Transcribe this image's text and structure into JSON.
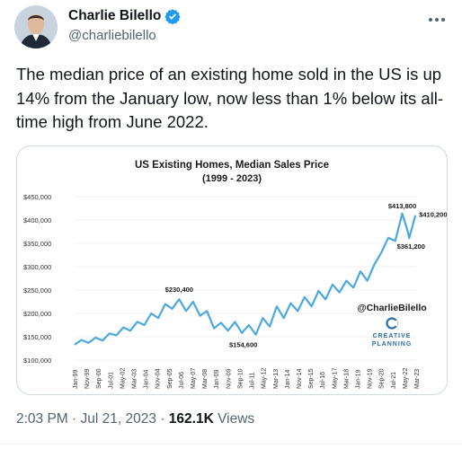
{
  "author": {
    "display_name": "Charlie Bilello",
    "handle": "@charliebilello",
    "verified": true
  },
  "menu_icon": "more-horizontal-icon",
  "tweet": {
    "text": "The median price of an existing home sold in the US is up 14% from the January low, now less than 1% below its all-time high from June 2022."
  },
  "meta": {
    "time": "2:03 PM",
    "separator": "·",
    "date": "Jul 21, 2023",
    "views_count": "162.1K",
    "views_label": "Views"
  },
  "chart_data": {
    "type": "line",
    "title": "US Existing Homes, Median Sales Price",
    "subtitle": "(1999 - 2023)",
    "y_ticks": [
      "$100,000",
      "$150,000",
      "$200,000",
      "$250,000",
      "$300,000",
      "$350,000",
      "$400,000",
      "$450,000"
    ],
    "ylim": [
      100000,
      450000
    ],
    "x_ticks": [
      "Jan-99",
      "Nov-99",
      "Sep-00",
      "Jul-01",
      "May-02",
      "Mar-03",
      "Jan-04",
      "Nov-04",
      "Sep-05",
      "Jul-06",
      "May-07",
      "Mar-08",
      "Jan-09",
      "Nov-09",
      "Sep-10",
      "Jul-11",
      "May-12",
      "Mar-13",
      "Jan-14",
      "Nov-14",
      "Sep-15",
      "Jul-16",
      "May-17",
      "Mar-18",
      "Jan-19",
      "Nov-19",
      "Sep-20",
      "Jul-21",
      "May-22",
      "Mar-23"
    ],
    "annotations": [
      {
        "label": "$230,400",
        "x": 2006.5,
        "y": 230400
      },
      {
        "label": "$154,600",
        "x": 2011.1,
        "y": 154600
      },
      {
        "label": "$413,800",
        "x": 2022.5,
        "y": 413800
      },
      {
        "label": "$361,200",
        "x": 2023.0,
        "y": 361200
      },
      {
        "label": "$410,200",
        "x": 2023.45,
        "y": 410200
      }
    ],
    "series": [
      {
        "x": [
          1999.0,
          1999.5,
          2000.0,
          2000.5,
          2001.0,
          2001.5,
          2002.0,
          2002.5,
          2003.0,
          2003.5,
          2004.0,
          2004.5,
          2005.0,
          2005.5,
          2006.0,
          2006.5,
          2007.0,
          2007.5,
          2008.0,
          2008.5,
          2009.0,
          2009.5,
          2010.0,
          2010.5,
          2011.0,
          2011.5,
          2012.0,
          2012.5,
          2013.0,
          2013.5,
          2014.0,
          2014.5,
          2015.0,
          2015.5,
          2016.0,
          2016.5,
          2017.0,
          2017.5,
          2018.0,
          2018.5,
          2019.0,
          2019.5,
          2020.0,
          2020.5,
          2021.0,
          2021.5,
          2022.0,
          2022.5,
          2022.9,
          2023.0,
          2023.45
        ],
        "y": [
          133000,
          143000,
          137000,
          148000,
          142000,
          157000,
          153000,
          170000,
          163000,
          182000,
          175000,
          200000,
          190000,
          220000,
          210000,
          230400,
          205000,
          225000,
          195000,
          205000,
          168000,
          180000,
          163000,
          182000,
          158000,
          175000,
          154600,
          190000,
          172000,
          215000,
          190000,
          222000,
          205000,
          235000,
          215000,
          248000,
          230000,
          262000,
          245000,
          270000,
          255000,
          290000,
          270000,
          305000,
          330000,
          362000,
          355000,
          413800,
          375000,
          361200,
          410200
        ]
      }
    ],
    "watermark_handle": "@CharlieBilello",
    "watermark_brand": "CREATIVE PLANNING",
    "line_color": "#4aa9de"
  }
}
